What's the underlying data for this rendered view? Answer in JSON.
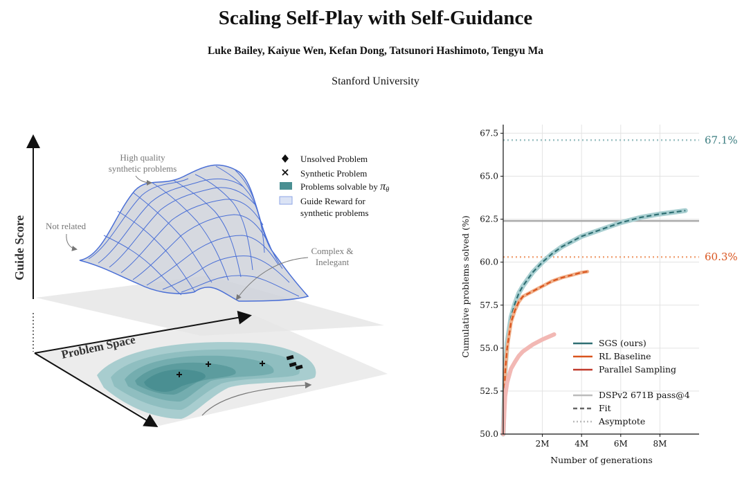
{
  "paper": {
    "title": "Scaling Self-Play with Self-Guidance",
    "authors": "Luke Bailey, Kaiyue Wen, Kefan Dong, Tatsunori Hashimoto, Tengyu Ma",
    "affiliation": "Stanford University"
  },
  "concept_figure": {
    "y_axis_label": "Guide Score",
    "x_axis_label": "Problem Space",
    "annotations": {
      "high_quality_1": "High quality",
      "high_quality_2": "synthetic problems",
      "not_related": "Not related",
      "complex_1": "Complex &",
      "complex_2": "Inelegant"
    },
    "legend": {
      "unsolved": "Unsolved Problem",
      "synthetic": "Synthetic Problem",
      "solvable": "Problems solvable by",
      "solvable_symbol": "π",
      "solvable_sub": "θ",
      "guide_1": "Guide Reward for",
      "guide_2": "synthetic problems"
    },
    "colors": {
      "surface": "#4a6fd6",
      "teal": "#4a8f92",
      "teal_light": "#a8cdcf"
    }
  },
  "chart_data": {
    "type": "line",
    "xlabel": "Number of generations",
    "ylabel": "Cumulative problems solved (%)",
    "xlim": [
      0,
      10000000
    ],
    "ylim": [
      50.0,
      68.0
    ],
    "xticks": [
      "2M",
      "4M",
      "6M",
      "8M"
    ],
    "xtick_values": [
      2000000,
      4000000,
      6000000,
      8000000
    ],
    "yticks": [
      "50.0",
      "52.5",
      "55.0",
      "57.5",
      "60.0",
      "62.5",
      "65.0",
      "67.5"
    ],
    "ytick_values": [
      50.0,
      52.5,
      55.0,
      57.5,
      60.0,
      62.5,
      65.0,
      67.5
    ],
    "grid": true,
    "legend_position": "lower-right",
    "series": [
      {
        "name": "SGS (ours)",
        "color": "#2f6f73",
        "x": [
          0,
          100000,
          200000,
          400000,
          600000,
          800000,
          1000000,
          1500000,
          2000000,
          2500000,
          3000000,
          3500000,
          4000000,
          4500000,
          5000000,
          5500000,
          6000000,
          7000000,
          8000000,
          9000000,
          9300000
        ],
        "y": [
          50.0,
          53.8,
          55.3,
          56.8,
          57.6,
          58.2,
          58.6,
          59.4,
          60.0,
          60.5,
          60.9,
          61.2,
          61.5,
          61.7,
          61.9,
          62.1,
          62.3,
          62.6,
          62.8,
          62.95,
          63.0
        ]
      },
      {
        "name": "RL Baseline",
        "color": "#d9541e",
        "x": [
          0,
          100000,
          200000,
          400000,
          600000,
          800000,
          1000000,
          1500000,
          2000000,
          2500000,
          3000000,
          3500000,
          4000000,
          4300000
        ],
        "y": [
          50.0,
          53.6,
          55.0,
          56.5,
          57.2,
          57.7,
          58.0,
          58.3,
          58.6,
          58.9,
          59.1,
          59.25,
          59.4,
          59.45
        ]
      },
      {
        "name": "Parallel Sampling",
        "color": "#c0392b",
        "x": [
          0,
          100000,
          200000,
          400000,
          600000,
          800000,
          1000000,
          1500000,
          2000000,
          2500000,
          2600000
        ],
        "y": [
          50.0,
          52.2,
          53.0,
          53.8,
          54.2,
          54.55,
          54.8,
          55.2,
          55.5,
          55.75,
          55.8
        ]
      }
    ],
    "reference_lines": [
      {
        "name": "DSPv2 671B pass@4",
        "y": 62.4,
        "style": "solid",
        "color": "#aaaaaa"
      },
      {
        "name": "Fit",
        "style": "dashed",
        "color": "#666666"
      },
      {
        "name": "Asymptote",
        "style": "dotted",
        "color": "#aaaaaa"
      }
    ],
    "asymptotes": [
      {
        "y": 67.1,
        "label": "67.1%",
        "color": "#3b7d80",
        "line_color": "#9cc1c2"
      },
      {
        "y": 60.3,
        "label": "60.3%",
        "color": "#d9541e",
        "line_color": "#f0a478"
      }
    ]
  }
}
